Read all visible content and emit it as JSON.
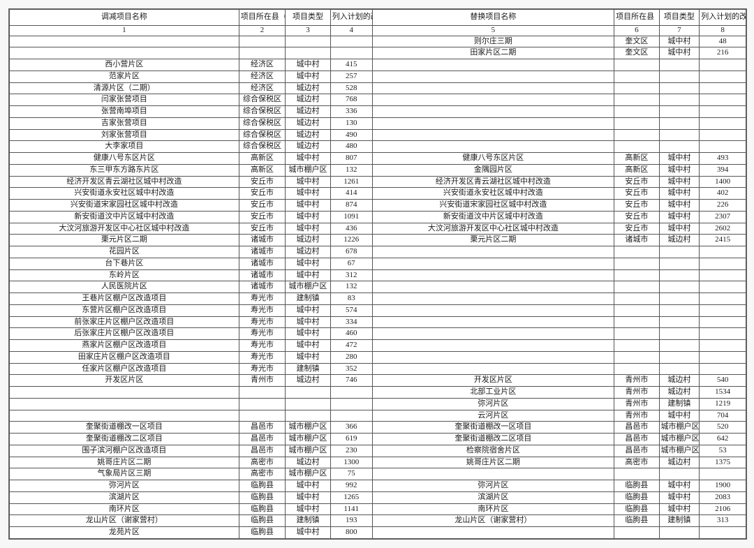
{
  "headers": {
    "left": {
      "name": "调减项目名称",
      "loc": "项目所在县（市、区）",
      "type": "项目类型",
      "qty": "列入计划的改造量（套）"
    },
    "right": {
      "name": "替换项目名称",
      "loc": "项目所在县（市、区）",
      "type": "项目类型",
      "qty": "列入计划的改造（套）"
    },
    "nums": {
      "c1": "1",
      "c2": "2",
      "c3": "3",
      "c4": "4",
      "c5": "5",
      "c6": "6",
      "c7": "7",
      "c8": "8"
    }
  },
  "rows": [
    {
      "l_name": "",
      "l_loc": "",
      "l_type": "",
      "l_qty": "",
      "r_name": "则尔庄三期",
      "r_loc": "奎文区",
      "r_type": "城中村",
      "r_qty": "48"
    },
    {
      "l_name": "",
      "l_loc": "",
      "l_type": "",
      "l_qty": "",
      "r_name": "田家片区二期",
      "r_loc": "奎文区",
      "r_type": "城中村",
      "r_qty": "216"
    },
    {
      "l_name": "西小营片区",
      "l_loc": "经济区",
      "l_type": "城中村",
      "l_qty": "415",
      "r_name": "",
      "r_loc": "",
      "r_type": "",
      "r_qty": ""
    },
    {
      "l_name": "范家片区",
      "l_loc": "经济区",
      "l_type": "城中村",
      "l_qty": "257",
      "r_name": "",
      "r_loc": "",
      "r_type": "",
      "r_qty": ""
    },
    {
      "l_name": "清源片区（二期）",
      "l_loc": "经济区",
      "l_type": "城边村",
      "l_qty": "528",
      "r_name": "",
      "r_loc": "",
      "r_type": "",
      "r_qty": ""
    },
    {
      "l_name": "闫家张营项目",
      "l_loc": "综合保税区",
      "l_type": "城边村",
      "l_qty": "768",
      "r_name": "",
      "r_loc": "",
      "r_type": "",
      "r_qty": ""
    },
    {
      "l_name": "张营南埠项目",
      "l_loc": "综合保税区",
      "l_type": "城边村",
      "l_qty": "336",
      "r_name": "",
      "r_loc": "",
      "r_type": "",
      "r_qty": ""
    },
    {
      "l_name": "吉家张营项目",
      "l_loc": "综合保税区",
      "l_type": "城边村",
      "l_qty": "130",
      "r_name": "",
      "r_loc": "",
      "r_type": "",
      "r_qty": ""
    },
    {
      "l_name": "刘家张营项目",
      "l_loc": "综合保税区",
      "l_type": "城边村",
      "l_qty": "490",
      "r_name": "",
      "r_loc": "",
      "r_type": "",
      "r_qty": ""
    },
    {
      "l_name": "大李家项目",
      "l_loc": "综合保税区",
      "l_type": "城边村",
      "l_qty": "480",
      "r_name": "",
      "r_loc": "",
      "r_type": "",
      "r_qty": ""
    },
    {
      "l_name": "健康八号东区片区",
      "l_loc": "高新区",
      "l_type": "城中村",
      "l_qty": "807",
      "r_name": "健康八号东区片区",
      "r_loc": "高新区",
      "r_type": "城中村",
      "r_qty": "493"
    },
    {
      "l_name": "东三甲东方路东片区",
      "l_loc": "高新区",
      "l_type": "城市棚户区",
      "l_qty": "132",
      "r_name": "金隅园片区",
      "r_loc": "高新区",
      "r_type": "城中村",
      "r_qty": "394"
    },
    {
      "l_name": "经济开发区青云湖社区城中村改造",
      "l_loc": "安丘市",
      "l_type": "城中村",
      "l_qty": "1261",
      "r_name": "经济开发区青云湖社区城中村改造",
      "r_loc": "安丘市",
      "r_type": "城中村",
      "r_qty": "1400"
    },
    {
      "l_name": "兴安街道永安社区城中村改造",
      "l_loc": "安丘市",
      "l_type": "城中村",
      "l_qty": "414",
      "r_name": "兴安街道永安社区城中村改造",
      "r_loc": "安丘市",
      "r_type": "城中村",
      "r_qty": "402"
    },
    {
      "l_name": "兴安街道宋家园社区城中村改造",
      "l_loc": "安丘市",
      "l_type": "城中村",
      "l_qty": "874",
      "r_name": "兴安街道宋家园社区城中村改造",
      "r_loc": "安丘市",
      "r_type": "城中村",
      "r_qty": "226"
    },
    {
      "l_name": "新安街道汶中片区城中村改造",
      "l_loc": "安丘市",
      "l_type": "城中村",
      "l_qty": "1091",
      "r_name": "新安街道汶中片区城中村改造",
      "r_loc": "安丘市",
      "r_type": "城中村",
      "r_qty": "2307"
    },
    {
      "l_name": "大汶河旅游开发区中心社区城中村改造",
      "l_loc": "安丘市",
      "l_type": "城中村",
      "l_qty": "436",
      "r_name": "大汶河旅游开发区中心社区城中村改造",
      "r_loc": "安丘市",
      "r_type": "城中村",
      "r_qty": "2602"
    },
    {
      "l_name": "栗元片区二期",
      "l_loc": "诸城市",
      "l_type": "城边村",
      "l_qty": "1226",
      "r_name": "栗元片区二期",
      "r_loc": "诸城市",
      "r_type": "城边村",
      "r_qty": "2415"
    },
    {
      "l_name": "花园片区",
      "l_loc": "诸城市",
      "l_type": "城边村",
      "l_qty": "678",
      "r_name": "",
      "r_loc": "",
      "r_type": "",
      "r_qty": ""
    },
    {
      "l_name": "台下巷片区",
      "l_loc": "诸城市",
      "l_type": "城中村",
      "l_qty": "67",
      "r_name": "",
      "r_loc": "",
      "r_type": "",
      "r_qty": ""
    },
    {
      "l_name": "东岭片区",
      "l_loc": "诸城市",
      "l_type": "城中村",
      "l_qty": "312",
      "r_name": "",
      "r_loc": "",
      "r_type": "",
      "r_qty": ""
    },
    {
      "l_name": "人民医院片区",
      "l_loc": "诸城市",
      "l_type": "城市棚户区",
      "l_qty": "132",
      "r_name": "",
      "r_loc": "",
      "r_type": "",
      "r_qty": ""
    },
    {
      "l_name": "王巷片区棚户区改造项目",
      "l_loc": "寿光市",
      "l_type": "建制镇",
      "l_qty": "83",
      "r_name": "",
      "r_loc": "",
      "r_type": "",
      "r_qty": ""
    },
    {
      "l_name": "东营片区棚户区改造项目",
      "l_loc": "寿光市",
      "l_type": "城中村",
      "l_qty": "574",
      "r_name": "",
      "r_loc": "",
      "r_type": "",
      "r_qty": ""
    },
    {
      "l_name": "前张家庄片区棚户区改造项目",
      "l_loc": "寿光市",
      "l_type": "城中村",
      "l_qty": "334",
      "r_name": "",
      "r_loc": "",
      "r_type": "",
      "r_qty": ""
    },
    {
      "l_name": "后张家庄片区棚户区改造项目",
      "l_loc": "寿光市",
      "l_type": "城中村",
      "l_qty": "460",
      "r_name": "",
      "r_loc": "",
      "r_type": "",
      "r_qty": ""
    },
    {
      "l_name": "燕家片区棚户区改造项目",
      "l_loc": "寿光市",
      "l_type": "城中村",
      "l_qty": "472",
      "r_name": "",
      "r_loc": "",
      "r_type": "",
      "r_qty": ""
    },
    {
      "l_name": "田家庄片区棚户区改造项目",
      "l_loc": "寿光市",
      "l_type": "城中村",
      "l_qty": "280",
      "r_name": "",
      "r_loc": "",
      "r_type": "",
      "r_qty": ""
    },
    {
      "l_name": "任家片区棚户区改造项目",
      "l_loc": "寿光市",
      "l_type": "建制镇",
      "l_qty": "352",
      "r_name": "",
      "r_loc": "",
      "r_type": "",
      "r_qty": ""
    },
    {
      "l_name": "开发区片区",
      "l_loc": "青州市",
      "l_type": "城边村",
      "l_qty": "746",
      "r_name": "开发区片区",
      "r_loc": "青州市",
      "r_type": "城边村",
      "r_qty": "540"
    },
    {
      "l_name": "",
      "l_loc": "",
      "l_type": "",
      "l_qty": "",
      "r_name": "北部工业片区",
      "r_loc": "青州市",
      "r_type": "城边村",
      "r_qty": "1534"
    },
    {
      "l_name": "",
      "l_loc": "",
      "l_type": "",
      "l_qty": "",
      "r_name": "弥河片区",
      "r_loc": "青州市",
      "r_type": "建制镇",
      "r_qty": "1219"
    },
    {
      "l_name": "",
      "l_loc": "",
      "l_type": "",
      "l_qty": "",
      "r_name": "云河片区",
      "r_loc": "青州市",
      "r_type": "城中村",
      "r_qty": "704"
    },
    {
      "l_name": "奎聚街道棚改一区项目",
      "l_loc": "昌邑市",
      "l_type": "城市棚户区",
      "l_qty": "366",
      "r_name": "奎聚街道棚改一区项目",
      "r_loc": "昌邑市",
      "r_type": "城市棚户区",
      "r_qty": "520"
    },
    {
      "l_name": "奎聚街道棚改二区项目",
      "l_loc": "昌邑市",
      "l_type": "城市棚户区",
      "l_qty": "619",
      "r_name": "奎聚街道棚改二区项目",
      "r_loc": "昌邑市",
      "r_type": "城市棚户区",
      "r_qty": "642"
    },
    {
      "l_name": "围子滨河棚户区改造项目",
      "l_loc": "昌邑市",
      "l_type": "城市棚户区",
      "l_qty": "230",
      "r_name": "检察院宿舍片区",
      "r_loc": "昌邑市",
      "r_type": "城市棚户区",
      "r_qty": "53"
    },
    {
      "l_name": "姚哥庄片区二期",
      "l_loc": "高密市",
      "l_type": "城边村",
      "l_qty": "1300",
      "r_name": "姚哥庄片区二期",
      "r_loc": "高密市",
      "r_type": "城边村",
      "r_qty": "1375"
    },
    {
      "l_name": "气象局片区三期",
      "l_loc": "高密市",
      "l_type": "城市棚户区",
      "l_qty": "75",
      "r_name": "",
      "r_loc": "",
      "r_type": "",
      "r_qty": ""
    },
    {
      "l_name": "弥河片区",
      "l_loc": "临朐县",
      "l_type": "城中村",
      "l_qty": "992",
      "r_name": "弥河片区",
      "r_loc": "临朐县",
      "r_type": "城中村",
      "r_qty": "1900"
    },
    {
      "l_name": "滨湖片区",
      "l_loc": "临朐县",
      "l_type": "城中村",
      "l_qty": "1265",
      "r_name": "滨湖片区",
      "r_loc": "临朐县",
      "r_type": "城中村",
      "r_qty": "2083"
    },
    {
      "l_name": "南环片区",
      "l_loc": "临朐县",
      "l_type": "城中村",
      "l_qty": "1141",
      "r_name": "南环片区",
      "r_loc": "临朐县",
      "r_type": "城中村",
      "r_qty": "2106"
    },
    {
      "l_name": "龙山片区（谢家营村）",
      "l_loc": "临朐县",
      "l_type": "建制镇",
      "l_qty": "193",
      "r_name": "龙山片区（谢家营村）",
      "r_loc": "临朐县",
      "r_type": "建制镇",
      "r_qty": "313"
    },
    {
      "l_name": "龙苑片区",
      "l_loc": "临朐县",
      "l_type": "城中村",
      "l_qty": "800",
      "r_name": "",
      "r_loc": "",
      "r_type": "",
      "r_qty": ""
    }
  ],
  "colors": {
    "border": "#555555",
    "bg": "#ffffff"
  }
}
